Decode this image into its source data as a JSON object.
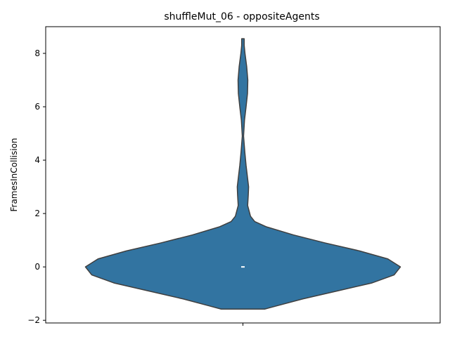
{
  "chart_data": {
    "type": "violin",
    "title": "shuffleMut_06 - oppositeAgents",
    "xlabel": "",
    "ylabel": "FramesInCollision",
    "ylim": [
      -2.1,
      9.0
    ],
    "yticks": [
      -2,
      0,
      2,
      4,
      6,
      8
    ],
    "ytick_labels": [
      "−2",
      "0",
      "2",
      "4",
      "6",
      "8"
    ],
    "grid": false,
    "color": "#3274a1",
    "edge_color": "#3f3f3f",
    "series": [
      {
        "category": "",
        "support": [
          -1.58,
          8.55
        ],
        "median": 0,
        "density_profile": [
          [
            -1.58,
            0.138
          ],
          [
            -1.45,
            0.22
          ],
          [
            -1.2,
            0.38
          ],
          [
            -0.9,
            0.6
          ],
          [
            -0.6,
            0.82
          ],
          [
            -0.3,
            0.96
          ],
          [
            0.0,
            1.0
          ],
          [
            0.3,
            0.92
          ],
          [
            0.6,
            0.74
          ],
          [
            0.9,
            0.52
          ],
          [
            1.2,
            0.32
          ],
          [
            1.5,
            0.15
          ],
          [
            1.7,
            0.075
          ],
          [
            1.9,
            0.048
          ],
          [
            2.3,
            0.03
          ],
          [
            2.7,
            0.034
          ],
          [
            3.0,
            0.036
          ],
          [
            3.4,
            0.028
          ],
          [
            3.8,
            0.02
          ],
          [
            4.3,
            0.012
          ],
          [
            4.9,
            0.004
          ],
          [
            5.5,
            0.01
          ],
          [
            6.0,
            0.02
          ],
          [
            6.5,
            0.029
          ],
          [
            7.0,
            0.031
          ],
          [
            7.5,
            0.024
          ],
          [
            8.0,
            0.013
          ],
          [
            8.3,
            0.008
          ],
          [
            8.55,
            0.008
          ]
        ]
      }
    ]
  }
}
